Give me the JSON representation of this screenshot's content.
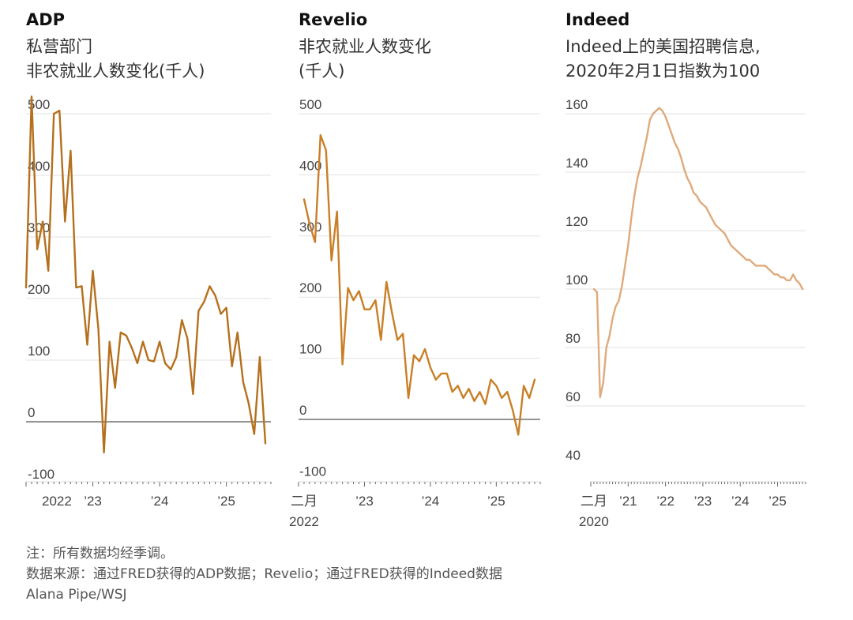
{
  "charts": [
    {
      "title": "ADP",
      "subtitle_lines": [
        "私营部门",
        "非农就业人数变化(千人)"
      ],
      "color": "#b5701d",
      "x_labels": [
        "2022",
        "’23",
        "’24",
        "’25"
      ],
      "y_ticks": [
        500,
        400,
        300,
        200,
        100,
        0,
        -100
      ]
    },
    {
      "title": "Revelio",
      "subtitle_lines": [
        "非农就业人数变化",
        "(千人)"
      ],
      "color": "#c97f26",
      "x_labels": [
        "二月",
        "’23",
        "’24",
        "’25"
      ],
      "x_label_sub": "2022",
      "y_ticks": [
        500,
        400,
        300,
        200,
        100,
        0,
        -100
      ]
    },
    {
      "title": "Indeed",
      "subtitle_lines": [
        "Indeed上的美国招聘信息,",
        "2020年2月1日指数为100"
      ],
      "color": "#dfaa7c",
      "x_labels": [
        "二月",
        "’21",
        "’22",
        "’23",
        "’24",
        "’25"
      ],
      "x_label_sub": "2020",
      "y_ticks": [
        160,
        140,
        120,
        100,
        80,
        60,
        40
      ]
    }
  ],
  "chart_data": [
    {
      "type": "line",
      "title": "ADP",
      "subtitle": "私营部门 非农就业人数变化(千人)",
      "ylim": [
        -100,
        520
      ],
      "x": [
        "2022-01",
        "2022-02",
        "2022-03",
        "2022-04",
        "2022-05",
        "2022-06",
        "2022-07",
        "2022-08",
        "2022-09",
        "2022-10",
        "2022-11",
        "2022-12",
        "2023-01",
        "2023-02",
        "2023-03",
        "2023-04",
        "2023-05",
        "2023-06",
        "2023-07",
        "2023-08",
        "2023-09",
        "2023-10",
        "2023-11",
        "2023-12",
        "2024-01",
        "2024-02",
        "2024-03",
        "2024-04",
        "2024-05",
        "2024-06",
        "2024-07",
        "2024-08",
        "2024-09",
        "2024-10",
        "2024-11",
        "2024-12",
        "2025-01",
        "2025-02",
        "2025-03",
        "2025-04",
        "2025-05",
        "2025-06",
        "2025-07",
        "2025-08"
      ],
      "series": [
        {
          "values": [
            218,
            528,
            280,
            325,
            245,
            500,
            505,
            325,
            440,
            218,
            220,
            125,
            245,
            150,
            -50,
            130,
            55,
            145,
            140,
            120,
            95,
            130,
            100,
            98,
            130,
            95,
            85,
            105,
            165,
            135,
            45,
            180,
            195,
            220,
            205,
            175,
            185,
            90,
            145,
            65,
            30,
            -20,
            105,
            -35
          ]
        }
      ]
    },
    {
      "type": "line",
      "title": "Revelio",
      "subtitle": "非农就业人数变化(千人)",
      "ylim": [
        -100,
        520
      ],
      "x": [
        "2022-02",
        "2022-03",
        "2022-04",
        "2022-05",
        "2022-06",
        "2022-07",
        "2022-08",
        "2022-09",
        "2022-10",
        "2022-11",
        "2022-12",
        "2023-01",
        "2023-02",
        "2023-03",
        "2023-04",
        "2023-05",
        "2023-06",
        "2023-07",
        "2023-08",
        "2023-09",
        "2023-10",
        "2023-11",
        "2023-12",
        "2024-01",
        "2024-02",
        "2024-03",
        "2024-04",
        "2024-05",
        "2024-06",
        "2024-07",
        "2024-08",
        "2024-09",
        "2024-10",
        "2024-11",
        "2024-12",
        "2025-01",
        "2025-02",
        "2025-03",
        "2025-04",
        "2025-05",
        "2025-06",
        "2025-07",
        "2025-08"
      ],
      "series": [
        {
          "values": [
            360,
            320,
            290,
            465,
            440,
            260,
            340,
            90,
            215,
            195,
            210,
            180,
            180,
            195,
            130,
            225,
            175,
            130,
            140,
            35,
            105,
            95,
            115,
            85,
            65,
            75,
            75,
            45,
            55,
            35,
            50,
            30,
            45,
            25,
            65,
            55,
            35,
            45,
            15,
            -25,
            55,
            35,
            65
          ]
        }
      ]
    },
    {
      "type": "line",
      "title": "Indeed",
      "subtitle": "Indeed上的美国招聘信息, 2020年2月1日指数为100",
      "ylim": [
        40,
        160
      ],
      "x": [
        "2020-02",
        "2020-03",
        "2020-04",
        "2020-05",
        "2020-06",
        "2020-07",
        "2020-08",
        "2020-09",
        "2020-10",
        "2020-11",
        "2020-12",
        "2021-01",
        "2021-02",
        "2021-03",
        "2021-04",
        "2021-05",
        "2021-06",
        "2021-07",
        "2021-08",
        "2021-09",
        "2021-10",
        "2021-11",
        "2021-12",
        "2022-01",
        "2022-02",
        "2022-03",
        "2022-04",
        "2022-05",
        "2022-06",
        "2022-07",
        "2022-08",
        "2022-09",
        "2022-10",
        "2022-11",
        "2022-12",
        "2023-01",
        "2023-02",
        "2023-03",
        "2023-04",
        "2023-05",
        "2023-06",
        "2023-07",
        "2023-08",
        "2023-09",
        "2023-10",
        "2023-11",
        "2023-12",
        "2024-01",
        "2024-02",
        "2024-03",
        "2024-04",
        "2024-05",
        "2024-06",
        "2024-07",
        "2024-08",
        "2024-09",
        "2024-10",
        "2024-11",
        "2024-12",
        "2025-01",
        "2025-02",
        "2025-03",
        "2025-04",
        "2025-05",
        "2025-06",
        "2025-07",
        "2025-08",
        "2025-09"
      ],
      "series": [
        {
          "values": [
            100,
            99,
            63,
            68,
            80,
            84,
            90,
            94,
            96,
            101,
            108,
            115,
            124,
            132,
            138,
            142,
            147,
            152,
            158,
            160,
            161,
            162,
            161,
            159,
            156,
            153,
            150,
            148,
            145,
            141,
            138,
            136,
            133,
            132,
            130,
            129,
            128,
            126,
            124,
            122,
            121,
            120,
            119,
            117,
            115,
            114,
            113,
            112,
            111,
            110,
            110,
            109,
            108,
            108,
            108,
            108,
            107,
            106,
            105,
            105,
            104,
            104,
            103,
            103,
            105,
            103,
            102,
            100
          ]
        }
      ]
    }
  ],
  "footer": {
    "note": "注：所有数据均经季调。",
    "source": "数据来源：通过FRED获得的ADP数据；Revelio；通过FRED获得的Indeed数据",
    "credit": "Alana Pipe/WSJ"
  }
}
